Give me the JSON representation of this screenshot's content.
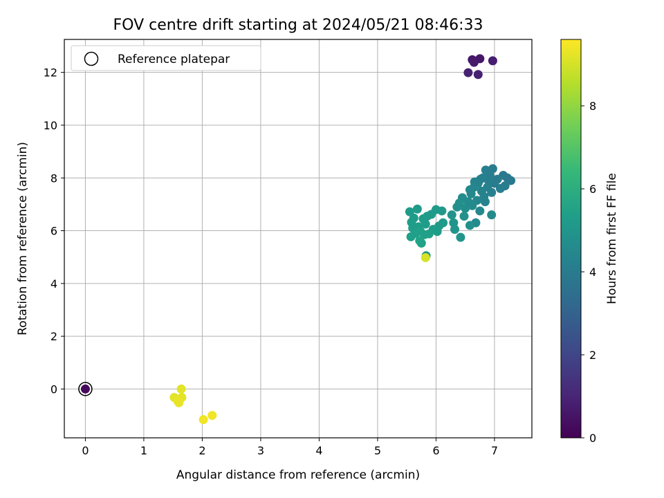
{
  "chart_data": {
    "type": "scatter",
    "title": "FOV centre drift starting at 2024/05/21 08:46:33",
    "xlabel": "Angular distance from reference (arcmin)",
    "ylabel": "Rotation from reference (arcmin)",
    "xlim": [
      -0.36,
      7.64
    ],
    "ylim": [
      -1.85,
      13.25
    ],
    "xticks": [
      0,
      1,
      2,
      3,
      4,
      5,
      6,
      7
    ],
    "yticks": [
      0,
      2,
      4,
      6,
      8,
      10,
      12
    ],
    "grid": true,
    "legend": {
      "placement": "top-left",
      "entries": [
        "Reference platepar"
      ]
    },
    "reference_point": {
      "x": 0,
      "y": 0,
      "hours": 0.2
    },
    "colorbar": {
      "label": "Hours from first FF file",
      "range": [
        0,
        9.6
      ],
      "ticks": [
        0,
        2,
        4,
        6,
        8
      ],
      "colormap": "viridis",
      "stops": [
        "#440154",
        "#482878",
        "#3e4a89",
        "#31688e",
        "#26828e",
        "#1f9e89",
        "#35b779",
        "#6ece58",
        "#b5de2b",
        "#fde725"
      ]
    },
    "series": [
      {
        "points": [
          {
            "x": 6.62,
            "y": 12.48,
            "h": 0.6
          },
          {
            "x": 6.65,
            "y": 12.38,
            "h": 0.7
          },
          {
            "x": 6.75,
            "y": 12.52,
            "h": 0.6
          },
          {
            "x": 6.97,
            "y": 12.44,
            "h": 0.8
          },
          {
            "x": 6.55,
            "y": 11.99,
            "h": 0.9
          },
          {
            "x": 6.72,
            "y": 11.92,
            "h": 0.9
          },
          {
            "x": 5.55,
            "y": 6.72,
            "h": 5.2
          },
          {
            "x": 5.68,
            "y": 6.82,
            "h": 5.2
          },
          {
            "x": 5.58,
            "y": 6.32,
            "h": 5.3
          },
          {
            "x": 5.6,
            "y": 6.1,
            "h": 5.3
          },
          {
            "x": 5.57,
            "y": 5.77,
            "h": 5.4
          },
          {
            "x": 5.65,
            "y": 5.9,
            "h": 5.4
          },
          {
            "x": 5.72,
            "y": 5.62,
            "h": 5.5
          },
          {
            "x": 5.75,
            "y": 5.53,
            "h": 5.5
          },
          {
            "x": 5.8,
            "y": 5.85,
            "h": 5.4
          },
          {
            "x": 5.82,
            "y": 6.25,
            "h": 5.3
          },
          {
            "x": 5.78,
            "y": 6.45,
            "h": 5.3
          },
          {
            "x": 5.92,
            "y": 6.62,
            "h": 5.2
          },
          {
            "x": 5.95,
            "y": 6.05,
            "h": 5.3
          },
          {
            "x": 6.0,
            "y": 6.8,
            "h": 5.2
          },
          {
            "x": 6.05,
            "y": 6.18,
            "h": 5.2
          },
          {
            "x": 6.1,
            "y": 6.75,
            "h": 5.1
          },
          {
            "x": 5.88,
            "y": 5.88,
            "h": 5.4
          },
          {
            "x": 6.12,
            "y": 6.3,
            "h": 5.2
          },
          {
            "x": 5.7,
            "y": 6.15,
            "h": 5.3
          },
          {
            "x": 5.62,
            "y": 6.48,
            "h": 5.2
          },
          {
            "x": 6.02,
            "y": 5.97,
            "h": 5.3
          },
          {
            "x": 5.85,
            "y": 6.55,
            "h": 5.2
          },
          {
            "x": 5.73,
            "y": 5.98,
            "h": 5.4
          },
          {
            "x": 6.3,
            "y": 6.3,
            "h": 5.0
          },
          {
            "x": 6.32,
            "y": 6.05,
            "h": 5.0
          },
          {
            "x": 6.27,
            "y": 6.6,
            "h": 4.9
          },
          {
            "x": 6.36,
            "y": 6.9,
            "h": 4.8
          },
          {
            "x": 6.42,
            "y": 5.75,
            "h": 5.0
          },
          {
            "x": 6.45,
            "y": 7.25,
            "h": 4.7
          },
          {
            "x": 6.5,
            "y": 6.85,
            "h": 4.7
          },
          {
            "x": 6.55,
            "y": 7.1,
            "h": 4.6
          },
          {
            "x": 6.58,
            "y": 6.2,
            "h": 4.8
          },
          {
            "x": 6.6,
            "y": 7.4,
            "h": 4.5
          },
          {
            "x": 6.62,
            "y": 6.95,
            "h": 4.6
          },
          {
            "x": 6.65,
            "y": 7.65,
            "h": 4.4
          },
          {
            "x": 6.68,
            "y": 6.3,
            "h": 4.6
          },
          {
            "x": 6.7,
            "y": 7.15,
            "h": 4.4
          },
          {
            "x": 6.72,
            "y": 7.8,
            "h": 4.3
          },
          {
            "x": 6.75,
            "y": 6.75,
            "h": 4.5
          },
          {
            "x": 6.78,
            "y": 7.5,
            "h": 4.3
          },
          {
            "x": 6.8,
            "y": 8.0,
            "h": 4.2
          },
          {
            "x": 6.82,
            "y": 7.3,
            "h": 4.3
          },
          {
            "x": 6.85,
            "y": 8.3,
            "h": 4.1
          },
          {
            "x": 6.88,
            "y": 7.65,
            "h": 4.2
          },
          {
            "x": 6.9,
            "y": 7.9,
            "h": 4.1
          },
          {
            "x": 6.92,
            "y": 8.1,
            "h": 4.1
          },
          {
            "x": 6.95,
            "y": 7.45,
            "h": 4.2
          },
          {
            "x": 6.97,
            "y": 8.35,
            "h": 4.0
          },
          {
            "x": 7.0,
            "y": 7.8,
            "h": 4.0
          },
          {
            "x": 7.05,
            "y": 7.95,
            "h": 4.0
          },
          {
            "x": 7.1,
            "y": 7.6,
            "h": 4.1
          },
          {
            "x": 7.15,
            "y": 8.1,
            "h": 3.9
          },
          {
            "x": 7.22,
            "y": 8.0,
            "h": 3.9
          },
          {
            "x": 7.28,
            "y": 7.9,
            "h": 3.9
          },
          {
            "x": 7.18,
            "y": 7.7,
            "h": 4.0
          },
          {
            "x": 6.95,
            "y": 6.6,
            "h": 4.6
          },
          {
            "x": 6.4,
            "y": 7.05,
            "h": 4.8
          },
          {
            "x": 6.48,
            "y": 6.55,
            "h": 4.8
          },
          {
            "x": 6.66,
            "y": 7.85,
            "h": 4.3
          },
          {
            "x": 6.76,
            "y": 7.95,
            "h": 4.2
          },
          {
            "x": 6.84,
            "y": 7.1,
            "h": 4.3
          },
          {
            "x": 6.58,
            "y": 7.55,
            "h": 4.5
          },
          {
            "x": 5.83,
            "y": 5.05,
            "h": 4.9
          },
          {
            "x": 5.82,
            "y": 4.98,
            "h": 9.0
          },
          {
            "x": 1.64,
            "y": 0.0,
            "h": 9.2
          },
          {
            "x": 1.65,
            "y": -0.32,
            "h": 9.2
          },
          {
            "x": 1.62,
            "y": -0.38,
            "h": 9.2
          },
          {
            "x": 1.58,
            "y": -0.45,
            "h": 9.3
          },
          {
            "x": 1.52,
            "y": -0.32,
            "h": 9.2
          },
          {
            "x": 1.6,
            "y": -0.52,
            "h": 9.3
          },
          {
            "x": 2.02,
            "y": -1.16,
            "h": 9.4
          },
          {
            "x": 2.17,
            "y": -1.0,
            "h": 9.4
          }
        ]
      }
    ]
  }
}
